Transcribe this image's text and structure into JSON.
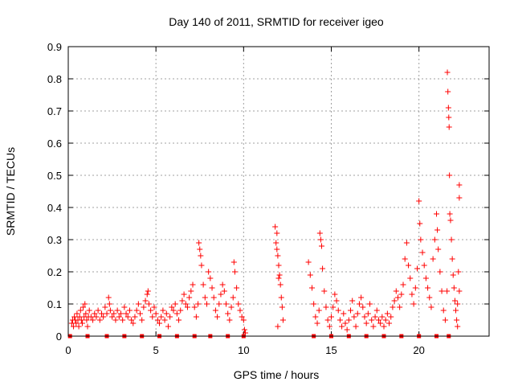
{
  "chart_data": {
    "type": "scatter",
    "title": "Day 140 of 2011, SRMTID for receiver igeo",
    "xlabel": "GPS time / hours",
    "ylabel": "SRMTID / TECUs",
    "xlim": [
      0,
      24
    ],
    "ylim": [
      0,
      0.9
    ],
    "x_ticks": [
      0,
      5,
      10,
      15,
      20
    ],
    "y_ticks": [
      0,
      0.1,
      0.2,
      0.3,
      0.4,
      0.5,
      0.6,
      0.7,
      0.8,
      0.9
    ],
    "x_tick_labels": [
      "0",
      "5",
      "10",
      "15",
      "20"
    ],
    "y_tick_labels": [
      "0",
      "0.1",
      "0.2",
      "0.3",
      "0.4",
      "0.5",
      "0.6",
      "0.7",
      "0.8",
      "0.9"
    ],
    "grid": true,
    "marker": "+",
    "color": "#ff0000",
    "baseline_markers": {
      "marker": "square",
      "y": 0,
      "x": [
        0.1,
        1.1,
        2.2,
        3.2,
        4.2,
        5.2,
        6.2,
        7.2,
        8.1,
        9.1,
        10.0,
        14.0,
        15.0,
        16.0,
        17.0,
        18.0,
        19.0,
        20.0,
        21.0,
        21.7
      ]
    },
    "series": [
      {
        "name": "SRMTID",
        "points": [
          [
            0.2,
            0.04
          ],
          [
            0.25,
            0.05
          ],
          [
            0.3,
            0.03
          ],
          [
            0.35,
            0.06
          ],
          [
            0.4,
            0.05
          ],
          [
            0.45,
            0.04
          ],
          [
            0.5,
            0.07
          ],
          [
            0.55,
            0.05
          ],
          [
            0.6,
            0.03
          ],
          [
            0.65,
            0.06
          ],
          [
            0.7,
            0.08
          ],
          [
            0.75,
            0.05
          ],
          [
            0.8,
            0.04
          ],
          [
            0.85,
            0.09
          ],
          [
            0.9,
            0.06
          ],
          [
            0.95,
            0.1
          ],
          [
            1.0,
            0.07
          ],
          [
            1.05,
            0.05
          ],
          [
            1.1,
            0.03
          ],
          [
            1.15,
            0.06
          ],
          [
            1.2,
            0.08
          ],
          [
            1.3,
            0.06
          ],
          [
            1.4,
            0.05
          ],
          [
            1.5,
            0.07
          ],
          [
            1.6,
            0.06
          ],
          [
            1.7,
            0.08
          ],
          [
            1.8,
            0.05
          ],
          [
            1.9,
            0.07
          ],
          [
            2.0,
            0.06
          ],
          [
            2.1,
            0.09
          ],
          [
            2.2,
            0.07
          ],
          [
            2.3,
            0.12
          ],
          [
            2.35,
            0.1
          ],
          [
            2.4,
            0.08
          ],
          [
            2.5,
            0.06
          ],
          [
            2.6,
            0.07
          ],
          [
            2.7,
            0.05
          ],
          [
            2.8,
            0.08
          ],
          [
            2.9,
            0.06
          ],
          [
            3.0,
            0.07
          ],
          [
            3.1,
            0.05
          ],
          [
            3.2,
            0.09
          ],
          [
            3.3,
            0.07
          ],
          [
            3.4,
            0.06
          ],
          [
            3.5,
            0.08
          ],
          [
            3.6,
            0.05
          ],
          [
            3.7,
            0.04
          ],
          [
            3.8,
            0.06
          ],
          [
            3.9,
            0.08
          ],
          [
            4.0,
            0.1
          ],
          [
            4.1,
            0.07
          ],
          [
            4.2,
            0.05
          ],
          [
            4.3,
            0.09
          ],
          [
            4.4,
            0.11
          ],
          [
            4.5,
            0.13
          ],
          [
            4.55,
            0.14
          ],
          [
            4.6,
            0.1
          ],
          [
            4.7,
            0.08
          ],
          [
            4.8,
            0.06
          ],
          [
            4.9,
            0.09
          ],
          [
            5.0,
            0.07
          ],
          [
            5.1,
            0.05
          ],
          [
            5.2,
            0.04
          ],
          [
            5.3,
            0.06
          ],
          [
            5.4,
            0.08
          ],
          [
            5.5,
            0.05
          ],
          [
            5.6,
            0.07
          ],
          [
            5.7,
            0.03
          ],
          [
            5.8,
            0.06
          ],
          [
            5.9,
            0.09
          ],
          [
            6.0,
            0.08
          ],
          [
            6.1,
            0.1
          ],
          [
            6.2,
            0.07
          ],
          [
            6.3,
            0.05
          ],
          [
            6.4,
            0.08
          ],
          [
            6.5,
            0.11
          ],
          [
            6.6,
            0.13
          ],
          [
            6.7,
            0.1
          ],
          [
            6.8,
            0.09
          ],
          [
            6.9,
            0.12
          ],
          [
            7.0,
            0.14
          ],
          [
            7.1,
            0.16
          ],
          [
            7.2,
            0.09
          ],
          [
            7.3,
            0.06
          ],
          [
            7.4,
            0.1
          ],
          [
            7.45,
            0.29
          ],
          [
            7.5,
            0.27
          ],
          [
            7.55,
            0.25
          ],
          [
            7.6,
            0.22
          ],
          [
            7.7,
            0.16
          ],
          [
            7.8,
            0.12
          ],
          [
            7.9,
            0.1
          ],
          [
            8.0,
            0.2
          ],
          [
            8.1,
            0.18
          ],
          [
            8.2,
            0.15
          ],
          [
            8.3,
            0.12
          ],
          [
            8.4,
            0.08
          ],
          [
            8.5,
            0.06
          ],
          [
            8.6,
            0.1
          ],
          [
            8.7,
            0.13
          ],
          [
            8.8,
            0.16
          ],
          [
            8.9,
            0.14
          ],
          [
            9.0,
            0.1
          ],
          [
            9.1,
            0.07
          ],
          [
            9.2,
            0.05
          ],
          [
            9.3,
            0.09
          ],
          [
            9.4,
            0.12
          ],
          [
            9.45,
            0.23
          ],
          [
            9.5,
            0.2
          ],
          [
            9.6,
            0.15
          ],
          [
            9.7,
            0.1
          ],
          [
            9.8,
            0.08
          ],
          [
            9.9,
            0.06
          ],
          [
            10.0,
            0.05
          ],
          [
            10.05,
            0.02
          ],
          [
            10.1,
            0.01
          ],
          [
            11.8,
            0.34
          ],
          [
            11.85,
            0.29
          ],
          [
            11.9,
            0.27
          ],
          [
            11.95,
            0.25
          ],
          [
            12.0,
            0.22
          ],
          [
            12.05,
            0.19
          ],
          [
            12.1,
            0.16
          ],
          [
            12.15,
            0.12
          ],
          [
            12.2,
            0.09
          ],
          [
            12.25,
            0.05
          ],
          [
            11.9,
            0.32
          ],
          [
            12.0,
            0.18
          ],
          [
            11.95,
            0.03
          ],
          [
            13.7,
            0.23
          ],
          [
            13.8,
            0.19
          ],
          [
            13.9,
            0.15
          ],
          [
            14.0,
            0.1
          ],
          [
            14.1,
            0.06
          ],
          [
            14.2,
            0.04
          ],
          [
            14.3,
            0.08
          ],
          [
            14.35,
            0.32
          ],
          [
            14.4,
            0.3
          ],
          [
            14.45,
            0.28
          ],
          [
            14.5,
            0.21
          ],
          [
            14.6,
            0.14
          ],
          [
            14.7,
            0.09
          ],
          [
            14.8,
            0.05
          ],
          [
            14.9,
            0.03
          ],
          [
            15.0,
            0.06
          ],
          [
            15.1,
            0.09
          ],
          [
            15.2,
            0.13
          ],
          [
            15.3,
            0.11
          ],
          [
            15.4,
            0.08
          ],
          [
            15.5,
            0.05
          ],
          [
            15.6,
            0.03
          ],
          [
            15.7,
            0.07
          ],
          [
            15.8,
            0.04
          ],
          [
            15.9,
            0.02
          ],
          [
            16.0,
            0.05
          ],
          [
            16.1,
            0.08
          ],
          [
            16.2,
            0.11
          ],
          [
            16.3,
            0.06
          ],
          [
            16.4,
            0.03
          ],
          [
            16.5,
            0.07
          ],
          [
            16.6,
            0.1
          ],
          [
            16.7,
            0.12
          ],
          [
            16.8,
            0.09
          ],
          [
            16.9,
            0.06
          ],
          [
            17.0,
            0.04
          ],
          [
            17.1,
            0.07
          ],
          [
            17.2,
            0.1
          ],
          [
            17.3,
            0.05
          ],
          [
            17.4,
            0.03
          ],
          [
            17.5,
            0.06
          ],
          [
            17.6,
            0.08
          ],
          [
            17.7,
            0.05
          ],
          [
            17.8,
            0.04
          ],
          [
            17.9,
            0.06
          ],
          [
            18.0,
            0.03
          ],
          [
            18.1,
            0.05
          ],
          [
            18.2,
            0.07
          ],
          [
            18.3,
            0.04
          ],
          [
            18.4,
            0.06
          ],
          [
            18.5,
            0.09
          ],
          [
            18.6,
            0.11
          ],
          [
            18.7,
            0.14
          ],
          [
            18.8,
            0.12
          ],
          [
            18.9,
            0.09
          ],
          [
            19.0,
            0.13
          ],
          [
            19.1,
            0.16
          ],
          [
            19.2,
            0.24
          ],
          [
            19.3,
            0.29
          ],
          [
            19.4,
            0.22
          ],
          [
            19.5,
            0.18
          ],
          [
            19.6,
            0.13
          ],
          [
            19.7,
            0.1
          ],
          [
            19.8,
            0.15
          ],
          [
            19.9,
            0.21
          ],
          [
            20.0,
            0.42
          ],
          [
            20.05,
            0.35
          ],
          [
            20.1,
            0.3
          ],
          [
            20.2,
            0.26
          ],
          [
            20.3,
            0.22
          ],
          [
            20.4,
            0.18
          ],
          [
            20.5,
            0.15
          ],
          [
            20.6,
            0.12
          ],
          [
            20.7,
            0.09
          ],
          [
            20.8,
            0.24
          ],
          [
            20.9,
            0.3
          ],
          [
            21.0,
            0.38
          ],
          [
            21.05,
            0.33
          ],
          [
            21.1,
            0.27
          ],
          [
            21.2,
            0.2
          ],
          [
            21.3,
            0.14
          ],
          [
            21.4,
            0.08
          ],
          [
            21.5,
            0.05
          ],
          [
            21.6,
            0.14
          ],
          [
            21.62,
            0.82
          ],
          [
            21.65,
            0.76
          ],
          [
            21.68,
            0.71
          ],
          [
            21.7,
            0.68
          ],
          [
            21.72,
            0.65
          ],
          [
            21.74,
            0.5
          ],
          [
            21.76,
            0.38
          ],
          [
            21.8,
            0.36
          ],
          [
            21.85,
            0.3
          ],
          [
            21.9,
            0.24
          ],
          [
            21.95,
            0.19
          ],
          [
            22.0,
            0.15
          ],
          [
            22.05,
            0.11
          ],
          [
            22.1,
            0.08
          ],
          [
            22.15,
            0.05
          ],
          [
            22.2,
            0.03
          ],
          [
            22.3,
            0.47
          ],
          [
            22.3,
            0.43
          ],
          [
            22.25,
            0.2
          ],
          [
            22.3,
            0.14
          ],
          [
            22.2,
            0.1
          ]
        ]
      }
    ]
  }
}
